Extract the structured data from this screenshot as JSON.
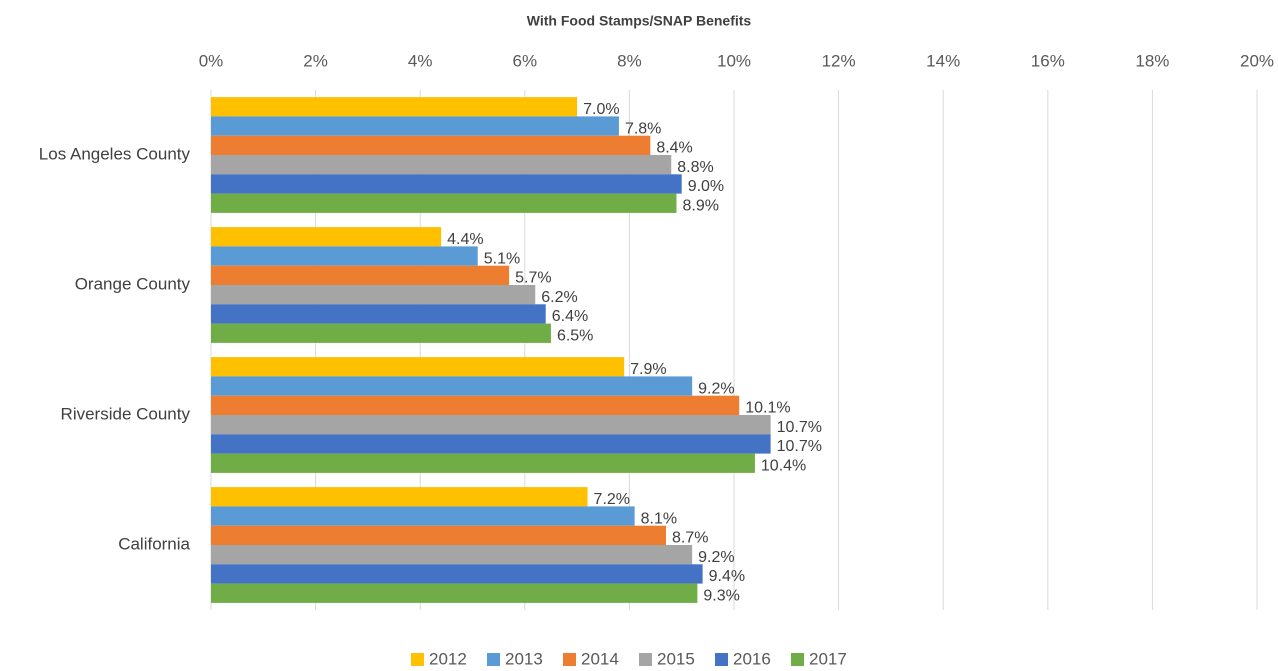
{
  "chart_data": {
    "type": "bar",
    "orientation": "horizontal",
    "title": "With Food Stamps/SNAP Benefits",
    "categories": [
      "Los Angeles County",
      "Orange County",
      "Riverside County",
      "California"
    ],
    "series": [
      {
        "name": "2012",
        "color": "#ffc000",
        "values": [
          7.0,
          4.4,
          7.9,
          7.2
        ],
        "value_labels": [
          "7.0%",
          "4.4%",
          "7.9%",
          "7.2%"
        ]
      },
      {
        "name": "2013",
        "color": "#5b9bd5",
        "values": [
          7.8,
          5.1,
          9.2,
          8.1
        ],
        "value_labels": [
          "7.8%",
          "5.1%",
          "9.2%",
          "8.1%"
        ]
      },
      {
        "name": "2014",
        "color": "#ed7d31",
        "values": [
          8.4,
          5.7,
          10.1,
          8.7
        ],
        "value_labels": [
          "8.4%",
          "5.7%",
          "10.1%",
          "8.7%"
        ]
      },
      {
        "name": "2015",
        "color": "#a5a5a5",
        "values": [
          8.8,
          6.2,
          10.7,
          9.2
        ],
        "value_labels": [
          "8.8%",
          "6.2%",
          "10.7%",
          "9.2%"
        ]
      },
      {
        "name": "2016",
        "color": "#4472c4",
        "values": [
          9.0,
          6.4,
          10.7,
          9.4
        ],
        "value_labels": [
          "9.0%",
          "6.4%",
          "10.7%",
          "9.4%"
        ]
      },
      {
        "name": "2017",
        "color": "#70ad47",
        "values": [
          8.9,
          6.5,
          10.4,
          9.3
        ],
        "value_labels": [
          "8.9%",
          "6.5%",
          "10.4%",
          "9.3%"
        ]
      }
    ],
    "xlim": [
      0,
      20
    ],
    "xticks": [
      {
        "value": 0,
        "label": "0%"
      },
      {
        "value": 2,
        "label": "2%"
      },
      {
        "value": 4,
        "label": "4%"
      },
      {
        "value": 6,
        "label": "6%"
      },
      {
        "value": 8,
        "label": "8%"
      },
      {
        "value": 10,
        "label": "10%"
      },
      {
        "value": 12,
        "label": "12%"
      },
      {
        "value": 14,
        "label": "14%"
      },
      {
        "value": 16,
        "label": "16%"
      },
      {
        "value": 18,
        "label": "18%"
      },
      {
        "value": 20,
        "label": "20%"
      }
    ],
    "grid": true,
    "legend": "bottom"
  }
}
